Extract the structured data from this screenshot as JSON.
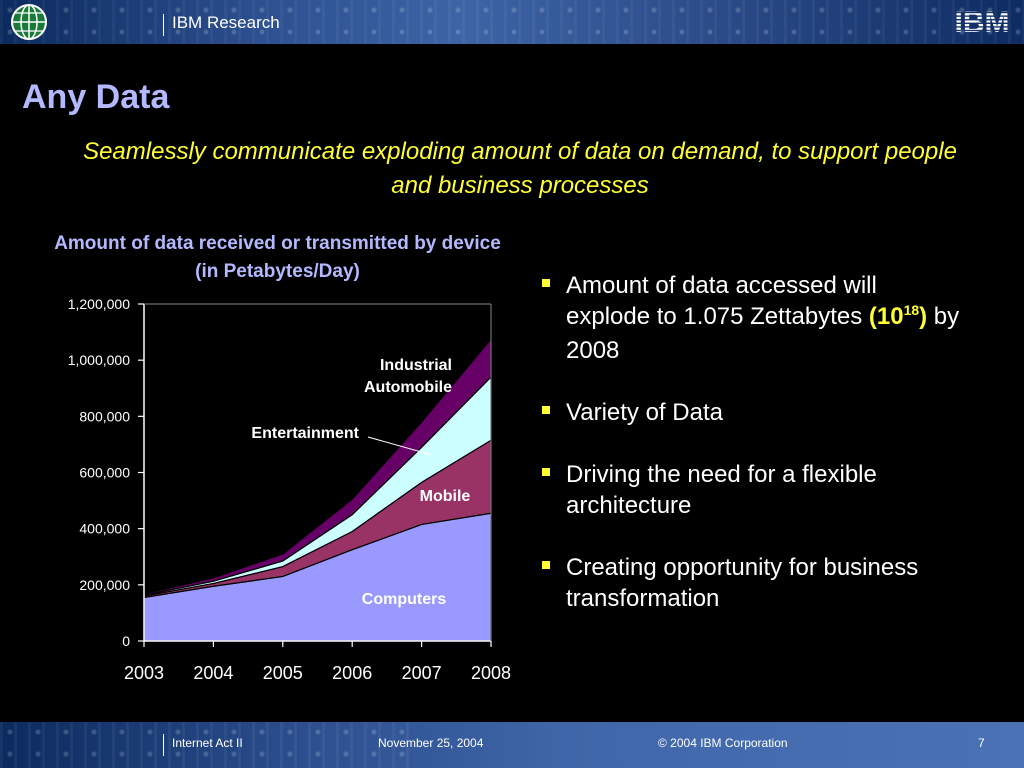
{
  "header": {
    "title": "IBM Research",
    "logo_text": "IBM"
  },
  "slide": {
    "title": "Any Data",
    "subtitle": "Seamlessly communicate exploding amount of data on demand, to support people and business processes"
  },
  "bullets": [
    {
      "pre": "Amount of data accessed will explode to 1.075 Zettabytes ",
      "hl_open": "(10",
      "hl_sup": "18",
      "hl_close": ")",
      "post": " by 2008"
    },
    {
      "pre": "Variety of Data"
    },
    {
      "pre": "Driving the need for a flexible architecture"
    },
    {
      "pre": "Creating opportunity for business transformation"
    }
  ],
  "footer": {
    "left": "Internet Act II",
    "date": "November 25, 2004",
    "copyright": "© 2004 IBM Corporation",
    "page": "7"
  },
  "colors": {
    "title": "#b4b9ff",
    "accent": "#ffff33",
    "computers": "#9999ff",
    "mobile": "#993366",
    "entertainment": "#ccffff",
    "industrial": "#660066"
  },
  "chart_data": {
    "type": "area",
    "stacked": true,
    "title": "Amount of data received or transmitted by device (in Petabytes/Day)",
    "x": [
      "2003",
      "2004",
      "2005",
      "2006",
      "2007",
      "2008"
    ],
    "ylim": [
      0,
      1200000
    ],
    "yticks": [
      "0",
      "200,000",
      "400,000",
      "600,000",
      "800,000",
      "1,000,000",
      "1,200,000"
    ],
    "series": [
      {
        "name": "Computers",
        "values": [
          155000,
          195000,
          230000,
          325000,
          415000,
          455000
        ],
        "color": "#9999ff"
      },
      {
        "name": "Mobile",
        "values": [
          5000,
          10000,
          35000,
          65000,
          150000,
          260000
        ],
        "color": "#993366"
      },
      {
        "name": "Entertainment",
        "values": [
          3000,
          8000,
          20000,
          60000,
          125000,
          225000
        ],
        "color": "#ccffff"
      },
      {
        "name": "Industrial Automobile",
        "values": [
          4000,
          12000,
          25000,
          55000,
          90000,
          135000
        ],
        "color": "#660066"
      }
    ],
    "labels": {
      "computers": "Computers",
      "mobile": "Mobile",
      "entertainment": "Entertainment",
      "industrial_1": "Industrial",
      "industrial_2": "Automobile"
    }
  }
}
